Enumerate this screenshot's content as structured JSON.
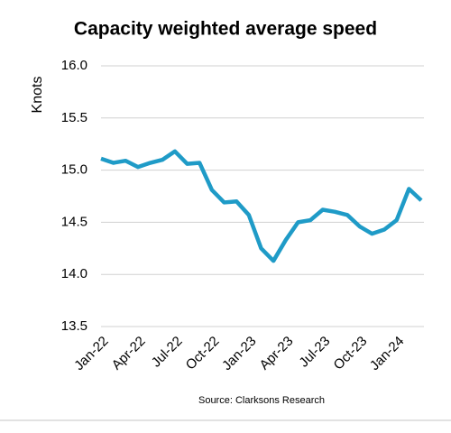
{
  "chart_data": {
    "type": "line",
    "title": "Capacity weighted average speed",
    "y_label": "Knots",
    "source": "Source: Clarksons Research",
    "categories": [
      "Jan-22",
      null,
      null,
      "Apr-22",
      null,
      null,
      "Jul-22",
      null,
      null,
      "Oct-22",
      null,
      null,
      "Jan-23",
      null,
      null,
      "Apr-23",
      null,
      null,
      "Jul-23",
      null,
      null,
      "Oct-23",
      null,
      null,
      "Jan-24",
      null,
      null
    ],
    "series": [
      {
        "name": "Capacity weighted average speed",
        "color": "#1f9bc7",
        "values": [
          15.11,
          15.07,
          15.09,
          15.03,
          15.07,
          15.1,
          15.18,
          15.06,
          15.07,
          14.81,
          14.69,
          14.7,
          14.57,
          14.25,
          14.13,
          14.33,
          14.5,
          14.52,
          14.62,
          14.6,
          14.57,
          14.46,
          14.39,
          14.43,
          14.52,
          14.82,
          14.71
        ]
      }
    ],
    "ylim": [
      13.5,
      16.0
    ],
    "yticks": [
      {
        "value": 13.5,
        "label": "13.5"
      },
      {
        "value": 14,
        "label": "14.0"
      },
      {
        "value": 14.5,
        "label": "14.5"
      },
      {
        "value": 15,
        "label": "15.0"
      },
      {
        "value": 15.5,
        "label": "15.5"
      },
      {
        "value": 16,
        "label": "16.0"
      }
    ],
    "grid": true
  }
}
